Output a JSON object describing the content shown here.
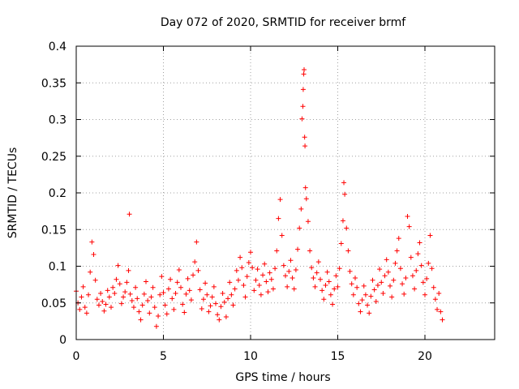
{
  "chart_data": {
    "type": "scatter",
    "title": "Day 072 of 2020, SRMTID for receiver brmf",
    "xlabel": "GPS time / hours",
    "ylabel": "SRMTID / TECUs",
    "xlim": [
      0,
      24
    ],
    "ylim": [
      0,
      0.4
    ],
    "xticks": [
      0,
      5,
      10,
      15,
      20
    ],
    "xtick_labels": [
      "0",
      "5",
      "10",
      "15",
      "20"
    ],
    "yticks": [
      0,
      0.05,
      0.1,
      0.15,
      0.2,
      0.25,
      0.3,
      0.35,
      0.4
    ],
    "ytick_labels": [
      "0",
      "0.05",
      "0.1",
      "0.15",
      "0.2",
      "0.25",
      "0.3",
      "0.35",
      "0.4"
    ],
    "grid": true,
    "marker": "+",
    "color": "#ff0000",
    "series": [
      {
        "name": "SRMTID",
        "points": [
          [
            0.0,
            0.066
          ],
          [
            0.1,
            0.05
          ],
          [
            0.2,
            0.041
          ],
          [
            0.3,
            0.058
          ],
          [
            0.4,
            0.072
          ],
          [
            0.5,
            0.044
          ],
          [
            0.6,
            0.036
          ],
          [
            0.7,
            0.061
          ],
          [
            0.8,
            0.092
          ],
          [
            0.9,
            0.133
          ],
          [
            1.0,
            0.116
          ],
          [
            1.1,
            0.081
          ],
          [
            1.2,
            0.055
          ],
          [
            1.3,
            0.047
          ],
          [
            1.4,
            0.063
          ],
          [
            1.5,
            0.052
          ],
          [
            1.6,
            0.039
          ],
          [
            1.7,
            0.048
          ],
          [
            1.8,
            0.067
          ],
          [
            1.9,
            0.058
          ],
          [
            2.0,
            0.044
          ],
          [
            2.1,
            0.071
          ],
          [
            2.2,
            0.063
          ],
          [
            2.3,
            0.082
          ],
          [
            2.4,
            0.101
          ],
          [
            2.5,
            0.076
          ],
          [
            2.6,
            0.049
          ],
          [
            2.7,
            0.058
          ],
          [
            2.8,
            0.065
          ],
          [
            2.9,
            0.078
          ],
          [
            3.0,
            0.094
          ],
          [
            3.05,
            0.171
          ],
          [
            3.1,
            0.062
          ],
          [
            3.2,
            0.053
          ],
          [
            3.3,
            0.044
          ],
          [
            3.4,
            0.071
          ],
          [
            3.5,
            0.056
          ],
          [
            3.6,
            0.038
          ],
          [
            3.7,
            0.027
          ],
          [
            3.8,
            0.047
          ],
          [
            3.9,
            0.062
          ],
          [
            4.0,
            0.079
          ],
          [
            4.1,
            0.053
          ],
          [
            4.2,
            0.036
          ],
          [
            4.3,
            0.058
          ],
          [
            4.4,
            0.071
          ],
          [
            4.5,
            0.044
          ],
          [
            4.6,
            0.018
          ],
          [
            4.7,
            0.032
          ],
          [
            4.8,
            0.061
          ],
          [
            4.9,
            0.086
          ],
          [
            5.0,
            0.064
          ],
          [
            5.1,
            0.047
          ],
          [
            5.2,
            0.035
          ],
          [
            5.3,
            0.069
          ],
          [
            5.4,
            0.082
          ],
          [
            5.5,
            0.056
          ],
          [
            5.6,
            0.041
          ],
          [
            5.7,
            0.063
          ],
          [
            5.8,
            0.078
          ],
          [
            5.9,
            0.095
          ],
          [
            6.0,
            0.071
          ],
          [
            6.1,
            0.048
          ],
          [
            6.2,
            0.037
          ],
          [
            6.3,
            0.062
          ],
          [
            6.4,
            0.083
          ],
          [
            6.5,
            0.067
          ],
          [
            6.6,
            0.054
          ],
          [
            6.7,
            0.088
          ],
          [
            6.8,
            0.106
          ],
          [
            6.9,
            0.133
          ],
          [
            7.0,
            0.094
          ],
          [
            7.1,
            0.068
          ],
          [
            7.2,
            0.042
          ],
          [
            7.3,
            0.055
          ],
          [
            7.4,
            0.077
          ],
          [
            7.5,
            0.061
          ],
          [
            7.6,
            0.038
          ],
          [
            7.7,
            0.046
          ],
          [
            7.8,
            0.058
          ],
          [
            7.9,
            0.072
          ],
          [
            8.0,
            0.049
          ],
          [
            8.1,
            0.034
          ],
          [
            8.2,
            0.027
          ],
          [
            8.3,
            0.045
          ],
          [
            8.4,
            0.063
          ],
          [
            8.5,
            0.051
          ],
          [
            8.6,
            0.031
          ],
          [
            8.7,
            0.056
          ],
          [
            8.8,
            0.078
          ],
          [
            8.9,
            0.061
          ],
          [
            9.0,
            0.047
          ],
          [
            9.1,
            0.069
          ],
          [
            9.2,
            0.094
          ],
          [
            9.3,
            0.081
          ],
          [
            9.4,
            0.112
          ],
          [
            9.5,
            0.098
          ],
          [
            9.6,
            0.074
          ],
          [
            9.7,
            0.058
          ],
          [
            9.8,
            0.086
          ],
          [
            9.9,
            0.105
          ],
          [
            10.0,
            0.119
          ],
          [
            10.1,
            0.098
          ],
          [
            10.2,
            0.067
          ],
          [
            10.3,
            0.081
          ],
          [
            10.4,
            0.096
          ],
          [
            10.5,
            0.074
          ],
          [
            10.6,
            0.061
          ],
          [
            10.7,
            0.088
          ],
          [
            10.8,
            0.103
          ],
          [
            10.9,
            0.079
          ],
          [
            11.0,
            0.065
          ],
          [
            11.1,
            0.091
          ],
          [
            11.2,
            0.082
          ],
          [
            11.3,
            0.069
          ],
          [
            11.4,
            0.097
          ],
          [
            11.5,
            0.121
          ],
          [
            11.6,
            0.165
          ],
          [
            11.7,
            0.191
          ],
          [
            11.8,
            0.142
          ],
          [
            11.9,
            0.101
          ],
          [
            12.0,
            0.087
          ],
          [
            12.1,
            0.072
          ],
          [
            12.2,
            0.093
          ],
          [
            12.3,
            0.108
          ],
          [
            12.4,
            0.084
          ],
          [
            12.5,
            0.069
          ],
          [
            12.6,
            0.095
          ],
          [
            12.7,
            0.123
          ],
          [
            12.8,
            0.152
          ],
          [
            12.9,
            0.178
          ],
          [
            12.95,
            0.301
          ],
          [
            13.0,
            0.318
          ],
          [
            13.02,
            0.341
          ],
          [
            13.05,
            0.362
          ],
          [
            13.07,
            0.368
          ],
          [
            13.1,
            0.276
          ],
          [
            13.12,
            0.264
          ],
          [
            13.15,
            0.207
          ],
          [
            13.2,
            0.192
          ],
          [
            13.3,
            0.161
          ],
          [
            13.4,
            0.121
          ],
          [
            13.5,
            0.098
          ],
          [
            13.6,
            0.084
          ],
          [
            13.7,
            0.072
          ],
          [
            13.8,
            0.091
          ],
          [
            13.9,
            0.106
          ],
          [
            14.0,
            0.082
          ],
          [
            14.1,
            0.067
          ],
          [
            14.2,
            0.055
          ],
          [
            14.3,
            0.074
          ],
          [
            14.4,
            0.092
          ],
          [
            14.5,
            0.079
          ],
          [
            14.6,
            0.061
          ],
          [
            14.7,
            0.048
          ],
          [
            14.8,
            0.069
          ],
          [
            14.9,
            0.087
          ],
          [
            15.0,
            0.072
          ],
          [
            15.1,
            0.097
          ],
          [
            15.2,
            0.131
          ],
          [
            15.3,
            0.162
          ],
          [
            15.35,
            0.214
          ],
          [
            15.4,
            0.198
          ],
          [
            15.5,
            0.152
          ],
          [
            15.6,
            0.121
          ],
          [
            15.7,
            0.093
          ],
          [
            15.8,
            0.076
          ],
          [
            15.9,
            0.061
          ],
          [
            16.0,
            0.084
          ],
          [
            16.1,
            0.071
          ],
          [
            16.2,
            0.049
          ],
          [
            16.3,
            0.038
          ],
          [
            16.4,
            0.054
          ],
          [
            16.5,
            0.073
          ],
          [
            16.6,
            0.061
          ],
          [
            16.7,
            0.047
          ],
          [
            16.8,
            0.036
          ],
          [
            16.9,
            0.059
          ],
          [
            17.0,
            0.081
          ],
          [
            17.1,
            0.068
          ],
          [
            17.2,
            0.052
          ],
          [
            17.3,
            0.074
          ],
          [
            17.4,
            0.096
          ],
          [
            17.5,
            0.078
          ],
          [
            17.6,
            0.063
          ],
          [
            17.7,
            0.087
          ],
          [
            17.8,
            0.109
          ],
          [
            17.9,
            0.092
          ],
          [
            18.0,
            0.073
          ],
          [
            18.1,
            0.058
          ],
          [
            18.2,
            0.081
          ],
          [
            18.3,
            0.104
          ],
          [
            18.4,
            0.121
          ],
          [
            18.5,
            0.138
          ],
          [
            18.6,
            0.097
          ],
          [
            18.7,
            0.076
          ],
          [
            18.8,
            0.062
          ],
          [
            18.9,
            0.084
          ],
          [
            19.0,
            0.168
          ],
          [
            19.1,
            0.154
          ],
          [
            19.2,
            0.112
          ],
          [
            19.3,
            0.087
          ],
          [
            19.4,
            0.069
          ],
          [
            19.5,
            0.094
          ],
          [
            19.6,
            0.117
          ],
          [
            19.7,
            0.132
          ],
          [
            19.8,
            0.101
          ],
          [
            19.9,
            0.078
          ],
          [
            20.0,
            0.061
          ],
          [
            20.1,
            0.083
          ],
          [
            20.2,
            0.104
          ],
          [
            20.3,
            0.142
          ],
          [
            20.4,
            0.097
          ],
          [
            20.5,
            0.071
          ],
          [
            20.6,
            0.055
          ],
          [
            20.7,
            0.041
          ],
          [
            20.8,
            0.063
          ],
          [
            20.9,
            0.038
          ],
          [
            21.0,
            0.027
          ]
        ]
      }
    ]
  }
}
